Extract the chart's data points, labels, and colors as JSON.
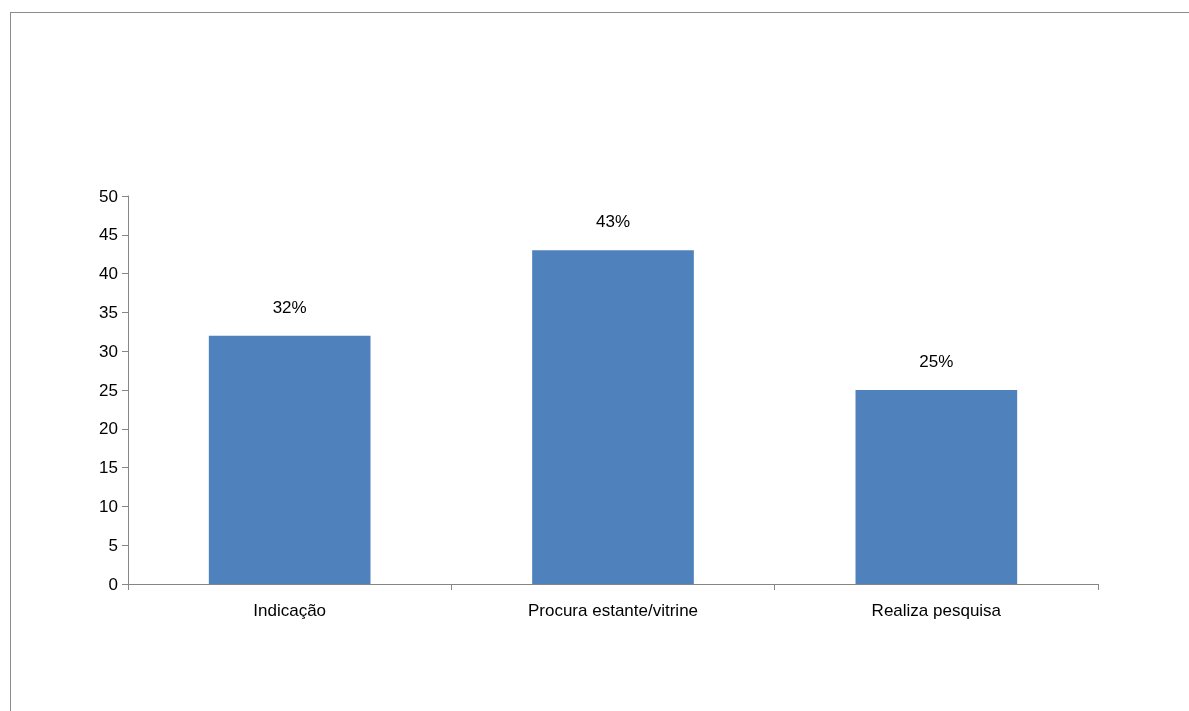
{
  "chart_data": {
    "type": "bar",
    "categories": [
      "Indicação",
      "Procura estante/vitrine",
      "Realiza pesquisa"
    ],
    "values": [
      32,
      43,
      25
    ],
    "value_labels": [
      "32%",
      "43%",
      "25%"
    ],
    "color": "#4f81bd",
    "ylim": [
      0,
      50
    ],
    "yticks": [
      0,
      5,
      10,
      15,
      20,
      25,
      30,
      35,
      40,
      45,
      50
    ],
    "grid": false
  }
}
